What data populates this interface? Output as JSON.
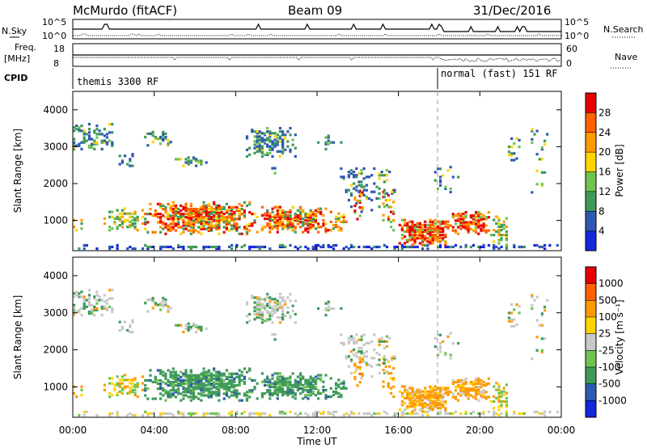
{
  "header": {
    "station": "McMurdo (fitACF)",
    "beam": "Beam 09",
    "date": "31/Dec/2016"
  },
  "top_panels": {
    "nsky_label": "N.Sky",
    "nsearch_label": "N.Search",
    "freq_label_1": "Freq.",
    "freq_label_2": "[MHz]",
    "nave_label": "Nave",
    "cpid_label": "CPID",
    "nsky_ticks": [
      "10^5",
      "10^0"
    ],
    "nsearch_ticks": [
      "10^5",
      "10^0"
    ],
    "freq_ticks": [
      "18",
      "8"
    ],
    "nave_ticks": [
      "60",
      "0"
    ],
    "cpid_modes": [
      {
        "name": "themis 3300 RF",
        "start_hour": 0
      },
      {
        "name": "normal (fast) 151 RF",
        "start_hour": 18
      }
    ]
  },
  "chart_data": [
    {
      "type": "heatmap",
      "name": "power",
      "ylabel": "Slant Range [km]",
      "xlabel": "Time UT",
      "x_ticks": [
        "00:00",
        "04:00",
        "08:00",
        "12:00",
        "16:00",
        "20:00",
        "00:00"
      ],
      "y_ticks": [
        "1000",
        "2000",
        "3000",
        "4000"
      ],
      "xlim_hours": [
        0,
        24
      ],
      "ylim_km": [
        180,
        4500
      ],
      "colorbar_label": "Power [dB]",
      "colorbar_ticks": [
        "4",
        "8",
        "12",
        "16",
        "20",
        "24",
        "28"
      ],
      "colorbar_colors": [
        "#1428dc",
        "#2e59b0",
        "#3f9a5a",
        "#6ec450",
        "#ffd400",
        "#ff9a00",
        "#ff6000",
        "#e80000"
      ],
      "dashed_marker_hour": 18
    },
    {
      "type": "heatmap",
      "name": "velocity",
      "ylabel": "Slant Range [km]",
      "xlabel": "Time UT",
      "x_ticks": [
        "00:00",
        "04:00",
        "08:00",
        "12:00",
        "16:00",
        "20:00",
        "00:00"
      ],
      "y_ticks": [
        "1000",
        "2000",
        "3000",
        "4000"
      ],
      "xlim_hours": [
        0,
        24
      ],
      "ylim_km": [
        180,
        4500
      ],
      "colorbar_label": "Velocity [m s⁻¹]",
      "colorbar_ticks": [
        "1000",
        "500",
        "100",
        "25",
        "-25",
        "-100",
        "-500",
        "-1000"
      ],
      "colorbar_colors": [
        "#1428dc",
        "#2e59b0",
        "#3f9a5a",
        "#6ec450",
        "#c8c8c8",
        "#ffd400",
        "#ff9a00",
        "#ff6000",
        "#e80000"
      ],
      "dashed_marker_hour": 18
    }
  ],
  "axis": {
    "xlabel": "Time UT"
  }
}
